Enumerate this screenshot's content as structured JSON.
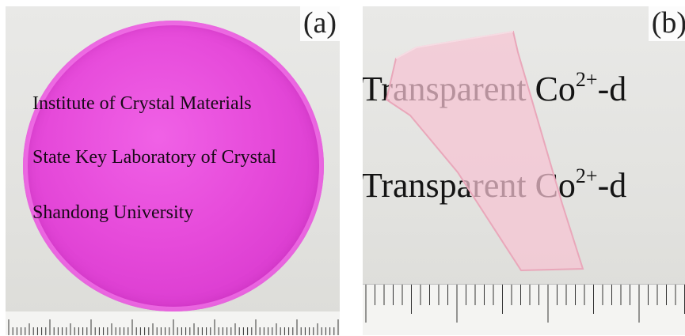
{
  "panels": [
    {
      "label": "(a)",
      "lines": [
        "Institute of Crystal Materials",
        "State Key Laboratory of Crystal",
        "Shandong University"
      ],
      "sample_color": "#e64ada"
    },
    {
      "label": "(b)",
      "lines": [
        {
          "main": "Transparent Co",
          "sup": "2+",
          "tail": "-d"
        },
        {
          "main": "Transparent Co",
          "sup": "2+",
          "tail": "-d"
        }
      ],
      "sample_color": "#f6c9d4"
    }
  ]
}
